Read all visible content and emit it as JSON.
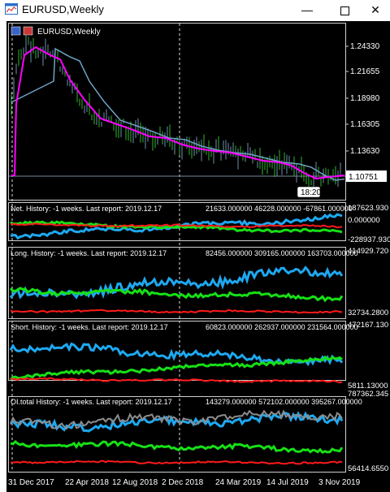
{
  "window": {
    "title": "EURUSD,Weekly",
    "controls": {
      "minimize": "—",
      "close": "✕"
    }
  },
  "main_chart": {
    "label": "EURUSD,Weekly",
    "price_axis": [
      "1.24330",
      "1.21655",
      "1.18980",
      "1.16305",
      "1.13630"
    ],
    "current_price": "1.10751",
    "crosshair_time": "18:20",
    "colors": {
      "bull": "#2fb32f",
      "bear": "#6f8fb0",
      "ma_fast": "#ff00ff",
      "ma_slow": "#6fa3c4"
    }
  },
  "indicators": [
    {
      "label": "Net. History: -1 weeks. Last report: 2019.12.17",
      "values": "21633.000000 46228.000000 -67861.000000",
      "axis": {
        "top": "187623.930",
        "mid": "0.000000",
        "bottom": "-228937.930"
      }
    },
    {
      "label": "Long. History: -1 weeks. Last report: 2019.12.17",
      "values": "82456.000000 309165.000000 163703.000000",
      "axis": {
        "top": "414929.720",
        "bottom": "32734.2800"
      }
    },
    {
      "label": "Short. History: -1 weeks. Last report: 2019.12.17",
      "values": "60823.000000 262937.000000 231564.000000",
      "axis": {
        "top": "472167.130",
        "bottom": "5811.13000"
      }
    },
    {
      "label": "OI.total History: -1 weeks. Last report: 2019.12.17",
      "values": "143279.000000 572102.000000 395267.000000",
      "axis": {
        "top": "787362.345",
        "bottom": "56414.6550"
      }
    }
  ],
  "time_axis": [
    "31 Dec 2017",
    "22 Apr 2018",
    "12 Aug 2018",
    "2 Dec 2018",
    "24 Mar 2019",
    "14 Jul 2019",
    "3 Nov 2019"
  ],
  "series_colors": {
    "blue": "#1ea8f0",
    "green": "#16e016",
    "red": "#ff1a1a",
    "gray": "#8c8c8c"
  }
}
